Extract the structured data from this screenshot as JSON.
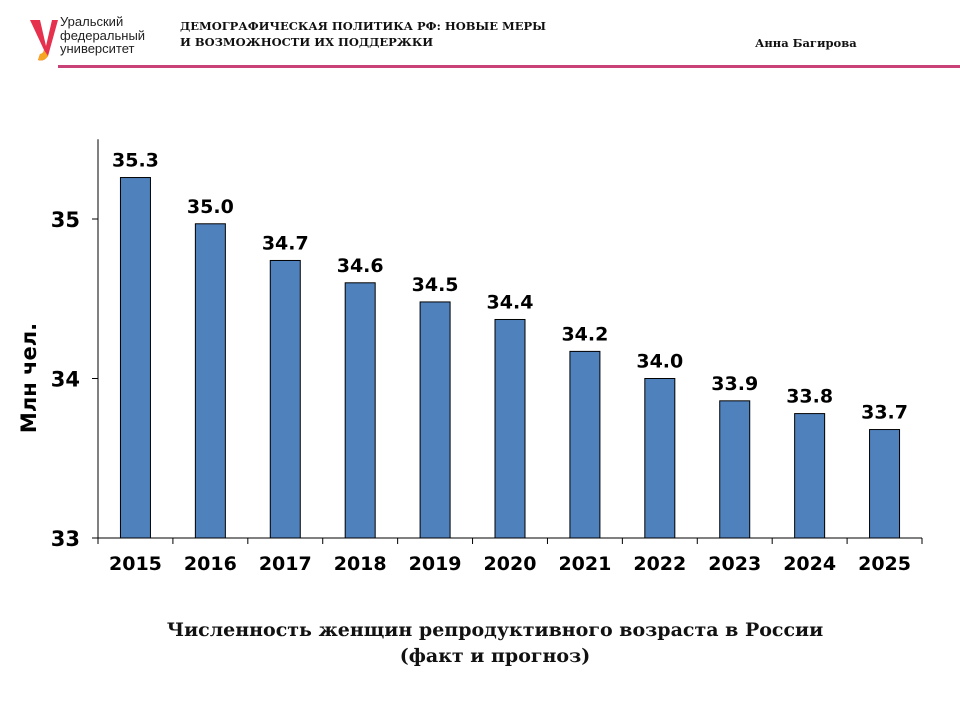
{
  "header": {
    "logo_text": [
      "Уральский",
      "федеральный",
      "университет"
    ],
    "title_line1": "ДЕМОГРАФИЧЕСКАЯ ПОЛИТИКА РФ: НОВЫЕ МЕРЫ",
    "title_line2": "И ВОЗМОЖНОСТИ ИХ ПОДДЕРЖКИ",
    "author": "Анна Багирова",
    "accent_color": "#c94277"
  },
  "chart_data": {
    "type": "bar",
    "title": "",
    "xlabel": "",
    "ylabel": "Млн чел.",
    "ylim": [
      33,
      35.5
    ],
    "yticks": [
      33,
      34,
      35
    ],
    "grid": false,
    "bar_color": "#4f81bd",
    "categories": [
      "2015",
      "2016",
      "2017",
      "2018",
      "2019",
      "2020",
      "2021",
      "2022",
      "2023",
      "2024",
      "2025"
    ],
    "values": [
      35.26,
      34.97,
      34.74,
      34.6,
      34.48,
      34.37,
      34.17,
      34.0,
      33.86,
      33.78,
      33.68
    ],
    "data_labels": [
      "35.3",
      "35.0",
      "34.7",
      "34.6",
      "34.5",
      "34.4",
      "34.2",
      "34.0",
      "33.9",
      "33.8",
      "33.7"
    ]
  },
  "caption": {
    "line1": "Численность женщин репродуктивного возраста в России",
    "line2": "(факт и прогноз)"
  }
}
